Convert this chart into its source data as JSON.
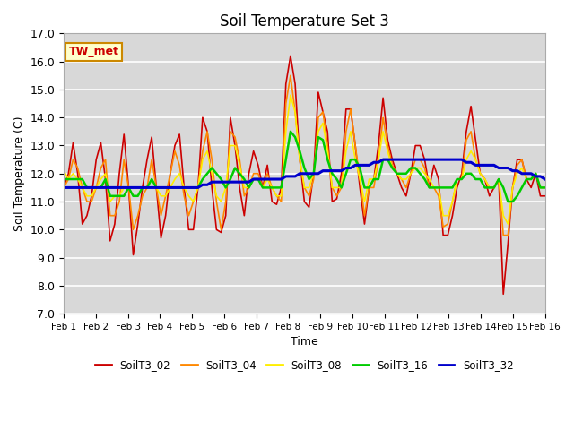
{
  "title": "Soil Temperature Set 3",
  "xlabel": "Time",
  "ylabel": "Soil Temperature (C)",
  "ylim": [
    7.0,
    17.0
  ],
  "yticks": [
    7.0,
    8.0,
    9.0,
    10.0,
    11.0,
    12.0,
    13.0,
    14.0,
    15.0,
    16.0,
    17.0
  ],
  "bg_color": "#d8d8d8",
  "series": {
    "SoilT3_02": {
      "color": "#cc0000",
      "lw": 1.2,
      "data": [
        11.5,
        12.0,
        13.1,
        12.0,
        10.2,
        10.5,
        11.2,
        12.5,
        13.1,
        11.8,
        9.6,
        10.2,
        12.0,
        13.4,
        11.5,
        9.1,
        10.2,
        11.5,
        12.5,
        13.3,
        11.5,
        9.7,
        10.5,
        12.0,
        13.0,
        13.4,
        11.5,
        10.0,
        10.0,
        11.5,
        14.0,
        13.5,
        11.5,
        10.0,
        9.9,
        10.5,
        14.0,
        13.0,
        11.5,
        10.5,
        12.0,
        12.8,
        12.3,
        11.5,
        12.3,
        11.0,
        10.9,
        11.5,
        15.2,
        16.2,
        15.2,
        12.5,
        11.0,
        10.8,
        12.0,
        14.9,
        14.2,
        13.5,
        11.0,
        11.1,
        12.0,
        14.3,
        14.3,
        13.0,
        11.5,
        10.2,
        11.5,
        11.8,
        13.0,
        14.7,
        13.2,
        12.5,
        12.0,
        11.5,
        11.2,
        12.0,
        13.0,
        13.0,
        12.5,
        11.5,
        12.3,
        11.8,
        9.8,
        9.8,
        10.5,
        11.5,
        12.0,
        13.5,
        14.4,
        13.2,
        12.0,
        11.8,
        11.2,
        11.5,
        11.8,
        7.7,
        9.5,
        11.5,
        12.5,
        12.5,
        11.8,
        11.5,
        12.0,
        11.2,
        11.2
      ]
    },
    "SoilT3_04": {
      "color": "#ff8800",
      "lw": 1.2,
      "data": [
        11.5,
        11.8,
        12.5,
        12.2,
        11.5,
        11.0,
        11.0,
        11.5,
        12.2,
        12.5,
        10.5,
        10.5,
        11.0,
        12.5,
        11.5,
        10.0,
        10.5,
        11.2,
        11.5,
        12.5,
        11.5,
        10.5,
        11.2,
        12.0,
        12.8,
        12.3,
        11.2,
        10.5,
        11.0,
        11.5,
        12.8,
        13.5,
        12.5,
        11.0,
        10.0,
        11.0,
        13.5,
        13.3,
        12.5,
        11.2,
        11.5,
        12.0,
        12.0,
        11.5,
        12.0,
        11.5,
        11.2,
        11.0,
        14.5,
        15.5,
        14.2,
        12.5,
        11.5,
        11.2,
        11.8,
        14.0,
        14.2,
        13.0,
        11.5,
        11.2,
        11.5,
        13.5,
        14.3,
        13.0,
        11.8,
        10.5,
        11.5,
        11.5,
        12.5,
        14.0,
        13.0,
        12.3,
        12.0,
        11.8,
        11.5,
        12.0,
        12.5,
        12.5,
        12.2,
        11.5,
        11.5,
        11.2,
        10.1,
        10.2,
        11.0,
        11.8,
        11.8,
        13.2,
        13.5,
        12.5,
        12.0,
        11.8,
        11.5,
        11.5,
        11.8,
        9.8,
        9.8,
        11.5,
        12.3,
        12.5,
        11.8,
        11.8,
        12.0,
        11.5,
        11.5
      ]
    },
    "SoilT3_08": {
      "color": "#ffee00",
      "lw": 1.2,
      "data": [
        12.1,
        11.8,
        12.0,
        11.8,
        11.5,
        11.2,
        11.2,
        11.5,
        11.8,
        12.0,
        11.0,
        11.2,
        11.2,
        11.5,
        11.5,
        11.2,
        11.2,
        11.5,
        11.5,
        11.8,
        11.5,
        11.2,
        11.2,
        11.5,
        11.8,
        12.0,
        11.5,
        11.2,
        11.0,
        11.5,
        12.5,
        12.8,
        12.0,
        11.2,
        11.0,
        11.5,
        13.0,
        13.0,
        12.3,
        11.5,
        11.5,
        11.8,
        11.8,
        11.5,
        11.8,
        11.5,
        11.2,
        11.2,
        13.5,
        14.8,
        14.2,
        12.5,
        11.5,
        11.5,
        12.0,
        13.5,
        13.8,
        12.8,
        11.5,
        11.5,
        11.5,
        12.8,
        13.5,
        12.5,
        11.8,
        11.0,
        11.8,
        11.8,
        12.5,
        13.5,
        12.8,
        12.2,
        12.0,
        11.8,
        11.8,
        12.0,
        12.2,
        12.2,
        12.0,
        11.8,
        11.5,
        11.5,
        10.5,
        10.5,
        11.0,
        11.8,
        11.8,
        12.5,
        12.8,
        12.5,
        12.0,
        11.8,
        11.5,
        11.5,
        11.8,
        10.5,
        10.2,
        11.5,
        12.0,
        12.2,
        11.8,
        11.8,
        12.0,
        11.5,
        11.5
      ]
    },
    "SoilT3_16": {
      "color": "#00cc00",
      "lw": 1.8,
      "data": [
        11.8,
        11.8,
        11.8,
        11.8,
        11.8,
        11.5,
        11.5,
        11.5,
        11.5,
        11.8,
        11.2,
        11.2,
        11.2,
        11.2,
        11.5,
        11.2,
        11.2,
        11.5,
        11.5,
        11.8,
        11.5,
        11.5,
        11.5,
        11.5,
        11.5,
        11.5,
        11.5,
        11.5,
        11.5,
        11.5,
        11.8,
        12.0,
        12.2,
        12.0,
        11.8,
        11.5,
        11.8,
        12.2,
        12.0,
        11.8,
        11.5,
        11.8,
        11.8,
        11.5,
        11.5,
        11.5,
        11.5,
        11.5,
        12.5,
        13.5,
        13.3,
        12.8,
        12.2,
        11.8,
        12.0,
        13.3,
        13.2,
        12.5,
        12.0,
        11.8,
        11.5,
        12.0,
        12.5,
        12.5,
        12.2,
        11.5,
        11.5,
        11.8,
        11.8,
        12.5,
        12.5,
        12.2,
        12.0,
        12.0,
        12.0,
        12.2,
        12.2,
        12.0,
        11.8,
        11.5,
        11.5,
        11.5,
        11.5,
        11.5,
        11.5,
        11.8,
        11.8,
        12.0,
        12.0,
        11.8,
        11.8,
        11.5,
        11.5,
        11.5,
        11.8,
        11.5,
        11.0,
        11.0,
        11.2,
        11.5,
        11.8,
        11.8,
        12.0,
        11.5,
        11.5
      ]
    },
    "SoilT3_32": {
      "color": "#0000cc",
      "lw": 2.2,
      "data": [
        11.5,
        11.5,
        11.5,
        11.5,
        11.5,
        11.5,
        11.5,
        11.5,
        11.5,
        11.5,
        11.5,
        11.5,
        11.5,
        11.5,
        11.5,
        11.5,
        11.5,
        11.5,
        11.5,
        11.5,
        11.5,
        11.5,
        11.5,
        11.5,
        11.5,
        11.5,
        11.5,
        11.5,
        11.5,
        11.5,
        11.6,
        11.6,
        11.7,
        11.7,
        11.7,
        11.7,
        11.7,
        11.7,
        11.7,
        11.7,
        11.7,
        11.8,
        11.8,
        11.8,
        11.8,
        11.8,
        11.8,
        11.8,
        11.9,
        11.9,
        11.9,
        12.0,
        12.0,
        12.0,
        12.0,
        12.0,
        12.1,
        12.1,
        12.1,
        12.1,
        12.1,
        12.2,
        12.2,
        12.3,
        12.3,
        12.3,
        12.3,
        12.4,
        12.4,
        12.5,
        12.5,
        12.5,
        12.5,
        12.5,
        12.5,
        12.5,
        12.5,
        12.5,
        12.5,
        12.5,
        12.5,
        12.5,
        12.5,
        12.5,
        12.5,
        12.5,
        12.5,
        12.4,
        12.4,
        12.3,
        12.3,
        12.3,
        12.3,
        12.3,
        12.2,
        12.2,
        12.2,
        12.1,
        12.1,
        12.0,
        12.0,
        12.0,
        11.9,
        11.9,
        11.8
      ]
    }
  },
  "xtick_labels": [
    "Feb 1",
    "Feb 2",
    "Feb 3",
    "Feb 4",
    "Feb 5",
    "Feb 6",
    "Feb 7",
    "Feb 8",
    "Feb 9",
    "Feb 10",
    "Feb 11",
    "Feb 12",
    "Feb 13",
    "Feb 14",
    "Feb 15",
    "Feb 16"
  ],
  "annotation_text": "TW_met",
  "annotation_color": "#cc0000",
  "annotation_bg": "#ffffcc",
  "annotation_border": "#cc8800"
}
